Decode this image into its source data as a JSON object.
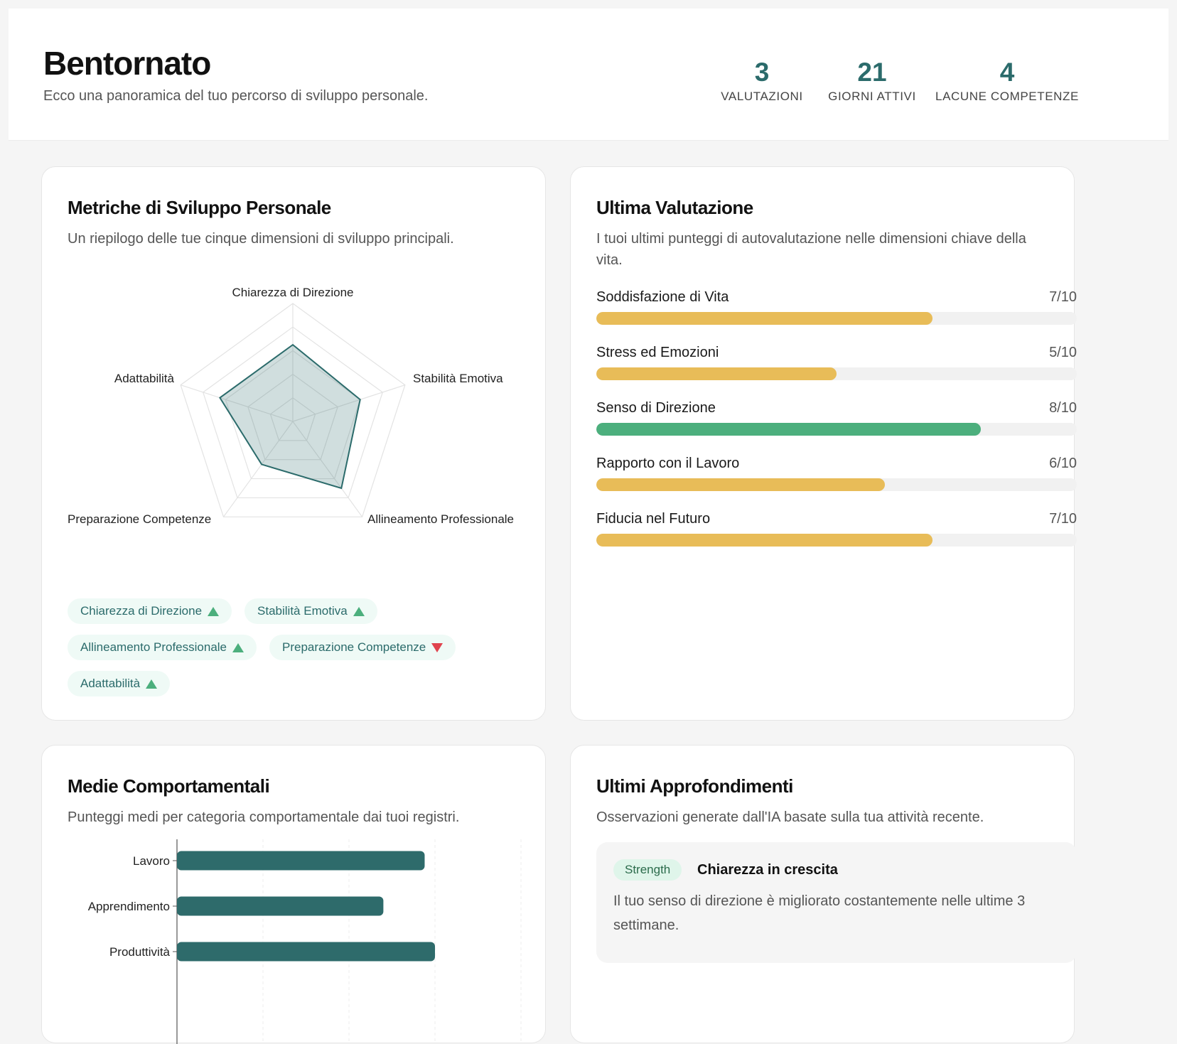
{
  "header": {
    "title": "Bentornato",
    "subtitle": "Ecco una panoramica del tuo percorso di sviluppo personale.",
    "stats": [
      {
        "value": "3",
        "label": "VALUTAZIONI"
      },
      {
        "value": "21",
        "label": "GIORNI ATTIVI"
      },
      {
        "value": "4",
        "label": "LACUNE COMPETENZE"
      }
    ]
  },
  "metrics_card": {
    "title": "Metriche di Sviluppo Personale",
    "subtitle": "Un riepilogo delle tue cinque dimensioni di sviluppo principali.",
    "chips": [
      {
        "label": "Chiarezza di Direzione",
        "trend": "up"
      },
      {
        "label": "Stabilità Emotiva",
        "trend": "up"
      },
      {
        "label": "Allineamento Professionale",
        "trend": "up"
      },
      {
        "label": "Preparazione Competenze",
        "trend": "down"
      },
      {
        "label": "Adattabilità",
        "trend": "up"
      }
    ]
  },
  "assessment_card": {
    "title": "Ultima Valutazione",
    "subtitle": "I tuoi ultimi punteggi di autovalutazione nelle dimensioni chiave della vita.",
    "scores": [
      {
        "label": "Soddisfazione di Vita",
        "value_text": "7/10",
        "value": 7,
        "color": "#e8bc58"
      },
      {
        "label": "Stress ed Emozioni",
        "value_text": "5/10",
        "value": 5,
        "color": "#e8bc58"
      },
      {
        "label": "Senso di Direzione",
        "value_text": "8/10",
        "value": 8,
        "color": "#4caf7d"
      },
      {
        "label": "Rapporto con il Lavoro",
        "value_text": "6/10",
        "value": 6,
        "color": "#e8bc58"
      },
      {
        "label": "Fiducia nel Futuro",
        "value_text": "7/10",
        "value": 7,
        "color": "#e8bc58"
      }
    ]
  },
  "behavior_card": {
    "title": "Medie Comportamentali",
    "subtitle": "Punteggi medi per categoria comportamentale dai tuoi registri."
  },
  "insights_card": {
    "title": "Ultimi Approfondimenti",
    "subtitle": "Osservazioni generate dall'IA basate sulla tua attività recente.",
    "items": [
      {
        "tag": "Strength",
        "title": "Chiarezza in crescita",
        "text": "Il tuo senso di direzione è migliorato costantemente nelle ultime 3 settimane."
      }
    ]
  },
  "chart_data": [
    {
      "type": "radar",
      "axes": [
        "Chiarezza di Direzione",
        "Stabilità Emotiva",
        "Allineamento Professionale",
        "Preparazione Competenze",
        "Adattabilità"
      ],
      "values": [
        6.5,
        6,
        7,
        4.5,
        6.5
      ],
      "max": 10,
      "grid_levels": 5,
      "color": "#2b6b6b"
    },
    {
      "type": "bar",
      "orientation": "horizontal",
      "categories": [
        "Lavoro",
        "Apprendimento",
        "Produttività"
      ],
      "values": [
        7.2,
        6,
        7.5
      ],
      "xlim": [
        0,
        10
      ],
      "color": "#2e6b6b"
    }
  ]
}
